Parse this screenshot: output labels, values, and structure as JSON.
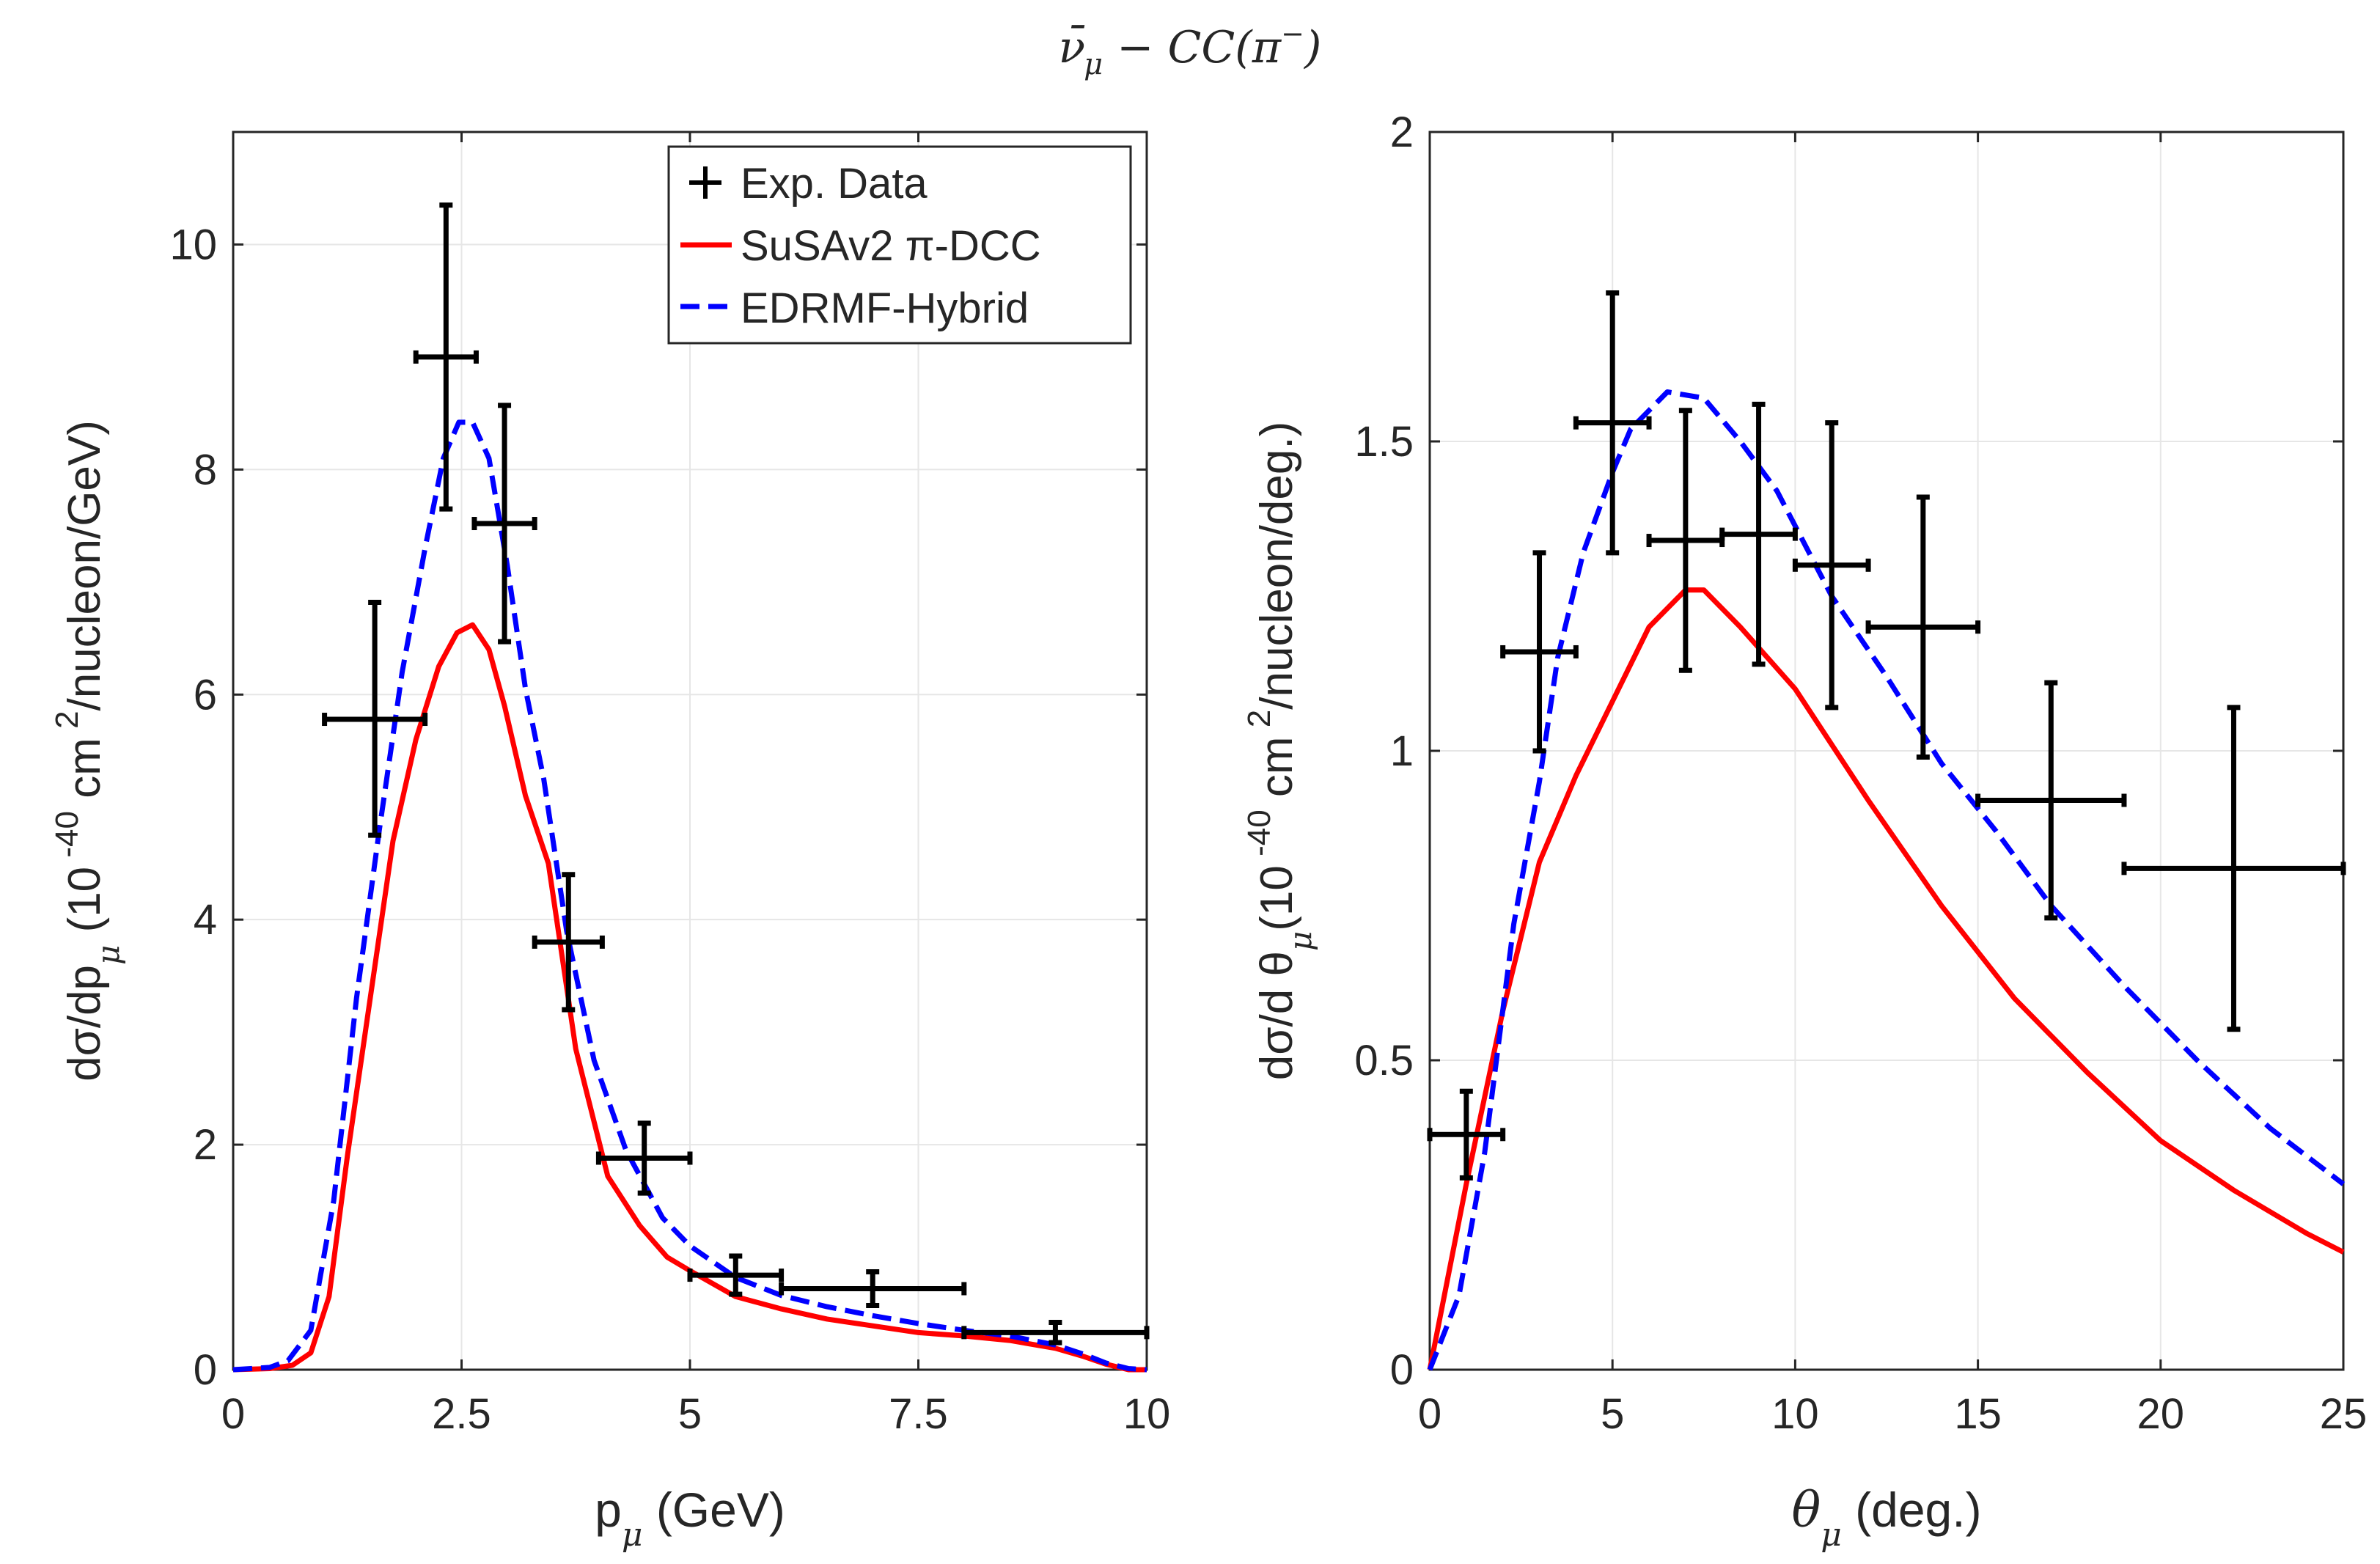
{
  "figure": {
    "title": {
      "nu": "ν",
      "bar": "¯",
      "nu_sub": "μ",
      "rest": " − CC(π",
      "pi_sup": "−",
      "close": ")"
    }
  },
  "colors": {
    "data": "#000000",
    "susav2": "#ff0000",
    "edrmf": "#0000ff",
    "grid": "#e6e6e6",
    "axis": "#262626"
  },
  "legend": {
    "entries": [
      {
        "label": "Exp. Data"
      },
      {
        "label": "SuSAv2  π-DCC"
      },
      {
        "label": "EDRMF-Hybrid"
      }
    ]
  },
  "chart_data": [
    {
      "type": "line",
      "panel": "left",
      "xlabel": {
        "main": "p",
        "sub": "μ",
        "unit": " (GeV)"
      },
      "ylabel": {
        "pre": "dσ/dp",
        "sub": "μ",
        "mid": "  (10",
        "sup": " -40",
        "post": "  cm",
        "sup2": " 2",
        "tail": "/nucleon/GeV)"
      },
      "xlim": [
        0,
        10
      ],
      "ylim": [
        0,
        11
      ],
      "xticks": [
        0,
        2.5,
        5,
        7.5,
        10
      ],
      "xtick_labels": [
        "0",
        "2.5",
        "5",
        "7.5",
        "10"
      ],
      "yticks": [
        0,
        2,
        4,
        6,
        8,
        10
      ],
      "ytick_labels": [
        "0",
        "2",
        "4",
        "6",
        "8",
        "10"
      ],
      "grid": true,
      "legend_position": "top-right",
      "exp_data": [
        {
          "x": 1.55,
          "xerr": 0.55,
          "y": 5.78,
          "ylo": 4.75,
          "yhi": 6.82
        },
        {
          "x": 2.33,
          "xerr": 0.33,
          "y": 9.0,
          "ylo": 7.65,
          "yhi": 10.35
        },
        {
          "x": 2.97,
          "xerr": 0.33,
          "y": 7.52,
          "ylo": 6.47,
          "yhi": 8.57
        },
        {
          "x": 3.67,
          "xerr": 0.37,
          "y": 3.8,
          "ylo": 3.2,
          "yhi": 4.4
        },
        {
          "x": 4.5,
          "xerr": 0.5,
          "y": 1.88,
          "ylo": 1.57,
          "yhi": 2.19
        },
        {
          "x": 5.5,
          "xerr": 0.5,
          "y": 0.84,
          "ylo": 0.67,
          "yhi": 1.01
        },
        {
          "x": 7.0,
          "xerr": 1.0,
          "y": 0.72,
          "ylo": 0.57,
          "yhi": 0.87
        },
        {
          "x": 9.0,
          "xerr": 1.0,
          "y": 0.33,
          "ylo": 0.24,
          "yhi": 0.42
        }
      ],
      "series": [
        {
          "name": "SuSAv2  π-DCC",
          "style": "solid",
          "x": [
            0,
            0.4,
            0.65,
            0.85,
            1.05,
            1.25,
            1.5,
            1.75,
            2.0,
            2.25,
            2.45,
            2.62,
            2.8,
            2.97,
            3.2,
            3.45,
            3.75,
            4.1,
            4.45,
            4.75,
            5.0,
            5.5,
            6.0,
            6.5,
            7.0,
            7.5,
            8.0,
            8.5,
            9.0,
            9.3,
            9.55,
            9.8,
            10.0
          ],
          "y": [
            0,
            0.01,
            0.04,
            0.15,
            0.65,
            1.9,
            3.3,
            4.7,
            5.6,
            6.25,
            6.55,
            6.62,
            6.4,
            5.9,
            5.1,
            4.5,
            2.85,
            1.72,
            1.28,
            1.0,
            0.88,
            0.65,
            0.54,
            0.45,
            0.39,
            0.33,
            0.3,
            0.26,
            0.19,
            0.12,
            0.05,
            0.0,
            0.0
          ]
        },
        {
          "name": "EDRMF-Hybrid",
          "style": "dashed",
          "x": [
            0,
            0.4,
            0.6,
            0.85,
            1.1,
            1.35,
            1.6,
            1.85,
            2.1,
            2.3,
            2.47,
            2.62,
            2.8,
            3.0,
            3.2,
            3.4,
            3.65,
            3.95,
            4.3,
            4.7,
            5.0,
            5.5,
            6.0,
            6.5,
            7.0,
            7.5,
            8.0,
            8.5,
            9.0,
            9.3,
            9.55,
            9.8,
            10.0
          ],
          "y": [
            0,
            0.02,
            0.08,
            0.35,
            1.5,
            3.3,
            4.8,
            6.2,
            7.3,
            8.1,
            8.42,
            8.42,
            8.1,
            7.15,
            6.05,
            5.25,
            3.9,
            2.75,
            1.95,
            1.35,
            1.1,
            0.82,
            0.66,
            0.56,
            0.48,
            0.41,
            0.35,
            0.3,
            0.22,
            0.14,
            0.06,
            0.01,
            0.0
          ]
        }
      ]
    },
    {
      "type": "line",
      "panel": "right",
      "xlabel": {
        "main": "θ",
        "sub": "μ",
        "unit": " (deg.)"
      },
      "ylabel": {
        "pre": "dσ/d  θ",
        "sub": "μ",
        "mid": "(10",
        "sup": " -40",
        "post": "  cm",
        "sup2": " 2",
        "tail": "/nucleon/deg.)"
      },
      "xlim": [
        0,
        25
      ],
      "ylim": [
        0,
        2
      ],
      "xticks": [
        0,
        5,
        10,
        15,
        20,
        25
      ],
      "xtick_labels": [
        "0",
        "5",
        "10",
        "15",
        "20",
        "25"
      ],
      "yticks": [
        0,
        0.5,
        1,
        1.5,
        2
      ],
      "ytick_labels": [
        "0",
        "0.5",
        "1",
        "1.5",
        "2"
      ],
      "grid": true,
      "exp_data": [
        {
          "x": 1.0,
          "xerr": 1.0,
          "y": 0.38,
          "ylo": 0.31,
          "yhi": 0.45
        },
        {
          "x": 3.0,
          "xerr": 1.0,
          "y": 1.16,
          "ylo": 1.0,
          "yhi": 1.32
        },
        {
          "x": 5.0,
          "xerr": 1.0,
          "y": 1.53,
          "ylo": 1.32,
          "yhi": 1.74
        },
        {
          "x": 7.0,
          "xerr": 1.0,
          "y": 1.34,
          "ylo": 1.13,
          "yhi": 1.55
        },
        {
          "x": 9.0,
          "xerr": 1.0,
          "y": 1.35,
          "ylo": 1.14,
          "yhi": 1.56
        },
        {
          "x": 11.0,
          "xerr": 1.0,
          "y": 1.3,
          "ylo": 1.07,
          "yhi": 1.53
        },
        {
          "x": 13.5,
          "xerr": 1.5,
          "y": 1.2,
          "ylo": 0.99,
          "yhi": 1.41
        },
        {
          "x": 17.0,
          "xerr": 2.0,
          "y": 0.92,
          "ylo": 0.73,
          "yhi": 1.11
        },
        {
          "x": 22.0,
          "xerr": 3.0,
          "y": 0.81,
          "ylo": 0.55,
          "yhi": 1.07
        }
      ],
      "series": [
        {
          "name": "SuSAv2  π-DCC",
          "style": "solid",
          "x": [
            0,
            1,
            2,
            3,
            4,
            5,
            6,
            7,
            7.5,
            8.5,
            10,
            12,
            14,
            16,
            18,
            20,
            22,
            24,
            25
          ],
          "y": [
            0,
            0.3,
            0.58,
            0.82,
            0.96,
            1.08,
            1.2,
            1.26,
            1.26,
            1.2,
            1.1,
            0.92,
            0.75,
            0.6,
            0.48,
            0.37,
            0.29,
            0.22,
            0.19
          ]
        },
        {
          "name": "EDRMF-Hybrid",
          "style": "dashed",
          "x": [
            0,
            0.8,
            1.5,
            2.3,
            3,
            3.5,
            4.2,
            5,
            5.5,
            6.5,
            7.5,
            8.5,
            9.5,
            11,
            12.5,
            14,
            15.5,
            17,
            19,
            21,
            23,
            25
          ],
          "y": [
            0,
            0.12,
            0.35,
            0.72,
            0.95,
            1.15,
            1.32,
            1.45,
            1.52,
            1.58,
            1.57,
            1.5,
            1.42,
            1.25,
            1.12,
            0.98,
            0.87,
            0.75,
            0.62,
            0.5,
            0.39,
            0.3
          ]
        }
      ]
    }
  ]
}
